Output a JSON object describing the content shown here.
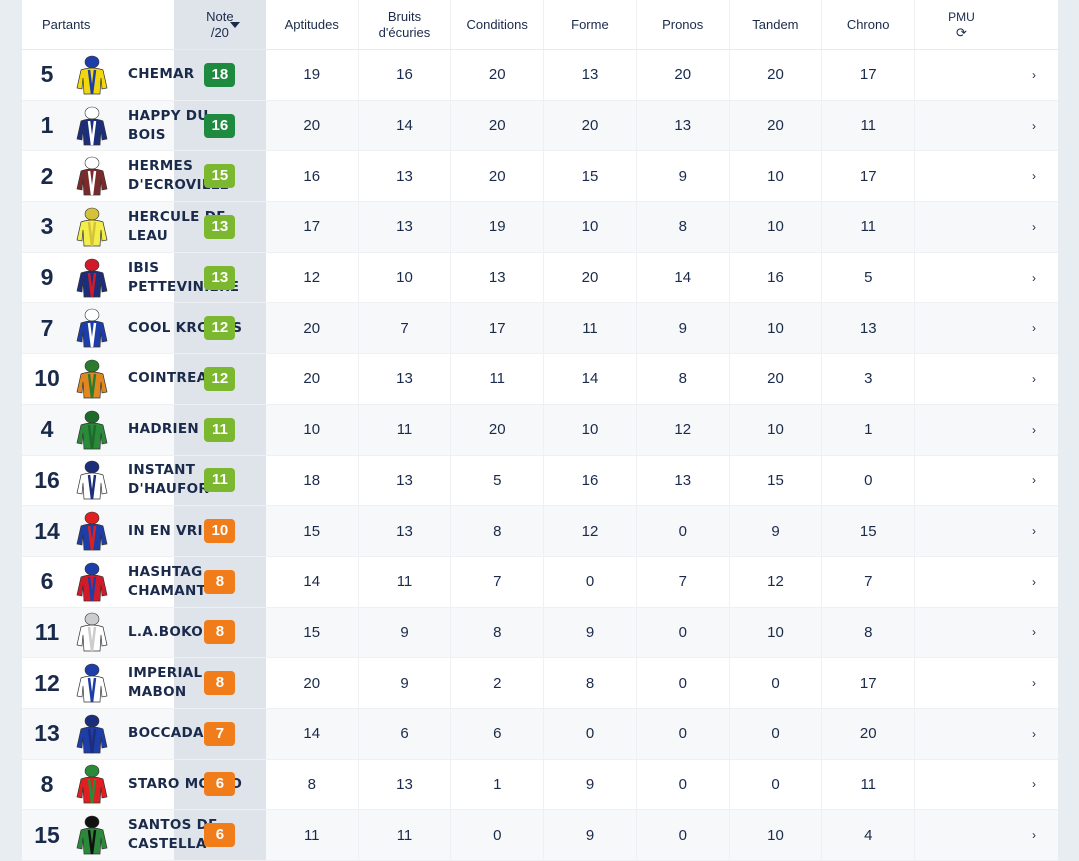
{
  "headers": {
    "partants": "Partants",
    "note": "Note",
    "note_sub": "/20",
    "aptitudes": "Aptitudes",
    "bruits": "Bruits",
    "bruits2": "d'écuries",
    "conditions": "Conditions",
    "forme": "Forme",
    "pronos": "Pronos",
    "tandem": "Tandem",
    "chrono": "Chrono",
    "pmu": "PMU",
    "pmu_icon": "⟳"
  },
  "colors": {
    "dark_green": "#1e8a3f",
    "light_green": "#7cb82f",
    "orange": "#f07d1a"
  },
  "rows": [
    {
      "num": "5",
      "name": "CHEMAR",
      "note": "18",
      "note_color": "dark_green",
      "apt": "19",
      "bru": "16",
      "con": "20",
      "for": "13",
      "pro": "20",
      "tan": "20",
      "chr": "17",
      "chev": "›",
      "silk": [
        "#f2d70e",
        "#1d3ea8"
      ]
    },
    {
      "num": "1",
      "name": "HAPPY DU BOIS",
      "note": "16",
      "note_color": "dark_green",
      "apt": "20",
      "bru": "14",
      "con": "20",
      "for": "20",
      "pro": "13",
      "tan": "20",
      "chr": "11",
      "chev": "›",
      "silk": [
        "#1c2d7a",
        "#ffffff"
      ]
    },
    {
      "num": "2",
      "name": "HERMES D'ECROVILLE",
      "note": "15",
      "note_color": "light_green",
      "apt": "16",
      "bru": "13",
      "con": "20",
      "for": "15",
      "pro": "9",
      "tan": "10",
      "chr": "17",
      "chev": "›",
      "silk": [
        "#7a2a2a",
        "#ffffff"
      ]
    },
    {
      "num": "3",
      "name": "HERCULE DE LEAU",
      "note": "13",
      "note_color": "light_green",
      "apt": "17",
      "bru": "13",
      "con": "19",
      "for": "10",
      "pro": "8",
      "tan": "10",
      "chr": "11",
      "chev": "›",
      "silk": [
        "#f3ee4a",
        "#d4c23a"
      ]
    },
    {
      "num": "9",
      "name": "IBIS PETTEVINIERE",
      "note": "13",
      "note_color": "light_green",
      "apt": "12",
      "bru": "10",
      "con": "13",
      "for": "20",
      "pro": "14",
      "tan": "16",
      "chr": "5",
      "chev": "›",
      "silk": [
        "#1c2d7a",
        "#d11b2a"
      ]
    },
    {
      "num": "7",
      "name": "COOL KRONOS",
      "note": "12",
      "note_color": "light_green",
      "apt": "20",
      "bru": "7",
      "con": "17",
      "for": "11",
      "pro": "9",
      "tan": "10",
      "chr": "13",
      "chev": "›",
      "silk": [
        "#1d3ea8",
        "#ffffff"
      ]
    },
    {
      "num": "10",
      "name": "COINTREAU",
      "note": "12",
      "note_color": "light_green",
      "apt": "20",
      "bru": "13",
      "con": "11",
      "for": "14",
      "pro": "8",
      "tan": "20",
      "chr": "3",
      "chev": "›",
      "silk": [
        "#e0871f",
        "#2a7a2f"
      ]
    },
    {
      "num": "4",
      "name": "HADRIEN",
      "note": "11",
      "note_color": "light_green",
      "apt": "10",
      "bru": "11",
      "con": "20",
      "for": "10",
      "pro": "12",
      "tan": "10",
      "chr": "1",
      "chev": "›",
      "silk": [
        "#2a8a3a",
        "#1e6a2a"
      ]
    },
    {
      "num": "16",
      "name": "INSTANT D'HAUFOR",
      "note": "11",
      "note_color": "light_green",
      "apt": "18",
      "bru": "13",
      "con": "5",
      "for": "16",
      "pro": "13",
      "tan": "15",
      "chr": "0",
      "chev": "›",
      "silk": [
        "#ffffff",
        "#1c2d7a"
      ]
    },
    {
      "num": "14",
      "name": "IN EN VRIE",
      "note": "10",
      "note_color": "orange",
      "apt": "15",
      "bru": "13",
      "con": "8",
      "for": "12",
      "pro": "0",
      "tan": "9",
      "chr": "15",
      "chev": "›",
      "silk": [
        "#1d3ea8",
        "#e02020"
      ]
    },
    {
      "num": "6",
      "name": "HASHTAG CHAMANT",
      "note": "8",
      "note_color": "orange",
      "apt": "14",
      "bru": "11",
      "con": "7",
      "for": "0",
      "pro": "7",
      "tan": "12",
      "chr": "7",
      "chev": "›",
      "silk": [
        "#d11b2a",
        "#1d3ea8"
      ]
    },
    {
      "num": "11",
      "name": "L.A.BOKO",
      "note": "8",
      "note_color": "orange",
      "apt": "15",
      "bru": "9",
      "con": "8",
      "for": "9",
      "pro": "0",
      "tan": "10",
      "chr": "8",
      "chev": "›",
      "silk": [
        "#ffffff",
        "#cccccc"
      ]
    },
    {
      "num": "12",
      "name": "IMPERIAL MABON",
      "note": "8",
      "note_color": "orange",
      "apt": "20",
      "bru": "9",
      "con": "2",
      "for": "8",
      "pro": "0",
      "tan": "0",
      "chr": "17",
      "chev": "›",
      "silk": [
        "#ffffff",
        "#1d3ea8"
      ]
    },
    {
      "num": "13",
      "name": "BOCCADAM",
      "note": "7",
      "note_color": "orange",
      "apt": "14",
      "bru": "6",
      "con": "6",
      "for": "0",
      "pro": "0",
      "tan": "0",
      "chr": "20",
      "chev": "›",
      "silk": [
        "#1d3ea8",
        "#1c2d7a"
      ]
    },
    {
      "num": "8",
      "name": "STARO MOJITO",
      "note": "6",
      "note_color": "orange",
      "apt": "8",
      "bru": "13",
      "con": "1",
      "for": "9",
      "pro": "0",
      "tan": "0",
      "chr": "11",
      "chev": "›",
      "silk": [
        "#e02020",
        "#2a8a3a"
      ]
    },
    {
      "num": "15",
      "name": "SANTOS DE CASTELLA",
      "note": "6",
      "note_color": "orange",
      "apt": "11",
      "bru": "11",
      "con": "0",
      "for": "9",
      "pro": "0",
      "tan": "10",
      "chr": "4",
      "chev": "›",
      "silk": [
        "#2a8a3a",
        "#111111"
      ]
    }
  ]
}
